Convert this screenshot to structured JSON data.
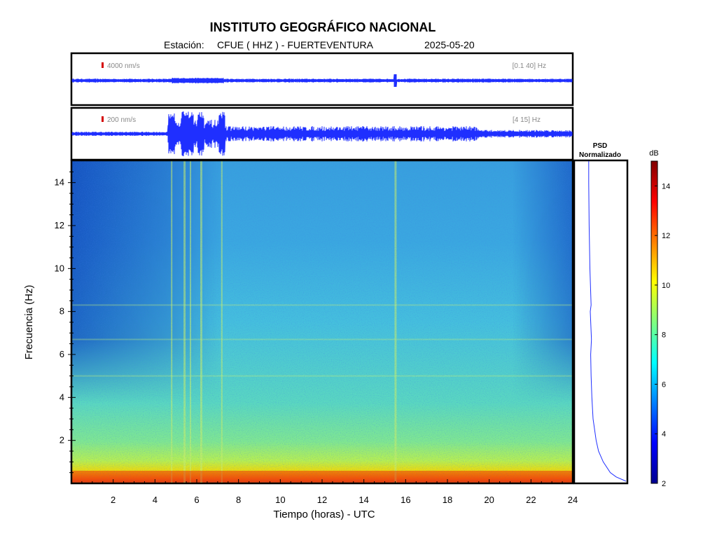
{
  "header": {
    "title": "INSTITUTO GEOGRÁFICO NACIONAL",
    "station_label": "Estación:",
    "station": "CFUE ( HHZ ) - FUERTEVENTURA",
    "date": "2025-05-20"
  },
  "traces": [
    {
      "scale_label": "4000 nm/s",
      "filter_label": "[0.1 40] Hz"
    },
    {
      "scale_label": "200 nm/s",
      "filter_label": "[4 15] Hz"
    }
  ],
  "psd": {
    "title_line1": "PSD",
    "title_line2": "Normalizado"
  },
  "colorbar": {
    "unit": "dB",
    "ticks": [
      2,
      4,
      6,
      8,
      10,
      12,
      14
    ],
    "range": [
      2,
      15
    ]
  },
  "colors": {
    "trace": "#1f2fff",
    "scale_mark": "#d40000",
    "psd_line": "#1f2fff"
  },
  "chart_data": {
    "type": "heatmap",
    "xlabel": "Tiempo (horas) - UTC",
    "ylabel": "Frecuencia  (Hz)",
    "x_ticks": [
      2,
      4,
      6,
      8,
      10,
      12,
      14,
      16,
      18,
      20,
      22,
      24
    ],
    "y_ticks": [
      2,
      4,
      6,
      8,
      10,
      12,
      14
    ],
    "xlim": [
      0,
      24
    ],
    "ylim": [
      0,
      15
    ],
    "colormap": "jet",
    "events_hours": [
      4.8,
      5.4,
      5.7,
      6.2,
      7.2,
      15.5
    ],
    "psd_profile": {
      "freq_hz": [
        0.1,
        0.3,
        0.5,
        1,
        1.5,
        2,
        3,
        4,
        5,
        6,
        6.7,
        8,
        8.3,
        10,
        12,
        14,
        15
      ],
      "normalized": [
        1.0,
        0.75,
        0.6,
        0.42,
        0.3,
        0.24,
        0.16,
        0.13,
        0.11,
        0.1,
        0.12,
        0.09,
        0.11,
        0.08,
        0.06,
        0.05,
        0.05
      ]
    }
  }
}
